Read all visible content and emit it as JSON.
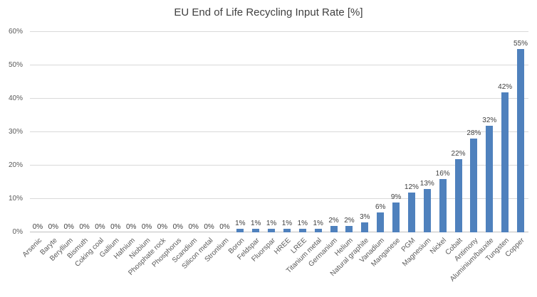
{
  "chart_data": {
    "type": "bar",
    "title": "EU End of Life Recycling Input Rate [%]",
    "xlabel": "",
    "ylabel": "",
    "ylim": [
      0,
      60
    ],
    "ytick_step": 10,
    "ytick_labels": [
      "0%",
      "10%",
      "20%",
      "30%",
      "40%",
      "50%",
      "60%"
    ],
    "grid": true,
    "legend": false,
    "bar_color": "#4F81BD",
    "gridline_color": "#D9D9D9",
    "axis_text_color": "#595959",
    "title_color": "#404040",
    "categories": [
      "Arsenic",
      "Baryte",
      "Beryllium",
      "Bismuth",
      "Coking coal",
      "Gallium",
      "Hafnium",
      "Niobium",
      "Phosphate rock",
      "Phosphorus",
      "Scandium",
      "Silicon metal",
      "Strontium",
      "Boron",
      "Feldspar",
      "Fluorspar",
      "HREE",
      "LREE",
      "Titanium metal",
      "Germanium",
      "Helium",
      "Natural graphite",
      "Vanadium",
      "Manganese",
      "PGM",
      "Magnesium",
      "Nickel",
      "Cobalt",
      "Antimony",
      "Aluminium/bauxite",
      "Tungsten",
      "Copper"
    ],
    "values": [
      0,
      0,
      0,
      0,
      0,
      0,
      0,
      0,
      0,
      0,
      0,
      0,
      0,
      1,
      1,
      1,
      1,
      1,
      1,
      2,
      2,
      3,
      6,
      9,
      12,
      13,
      16,
      22,
      28,
      32,
      42,
      55
    ],
    "data_labels": [
      "0%",
      "0%",
      "0%",
      "0%",
      "0%",
      "0%",
      "0%",
      "0%",
      "0%",
      "0%",
      "0%",
      "0%",
      "0%",
      "1%",
      "1%",
      "1%",
      "1%",
      "1%",
      "1%",
      "2%",
      "2%",
      "3%",
      "6%",
      "9%",
      "12%",
      "13%",
      "16%",
      "22%",
      "28%",
      "32%",
      "42%",
      "55%"
    ]
  }
}
